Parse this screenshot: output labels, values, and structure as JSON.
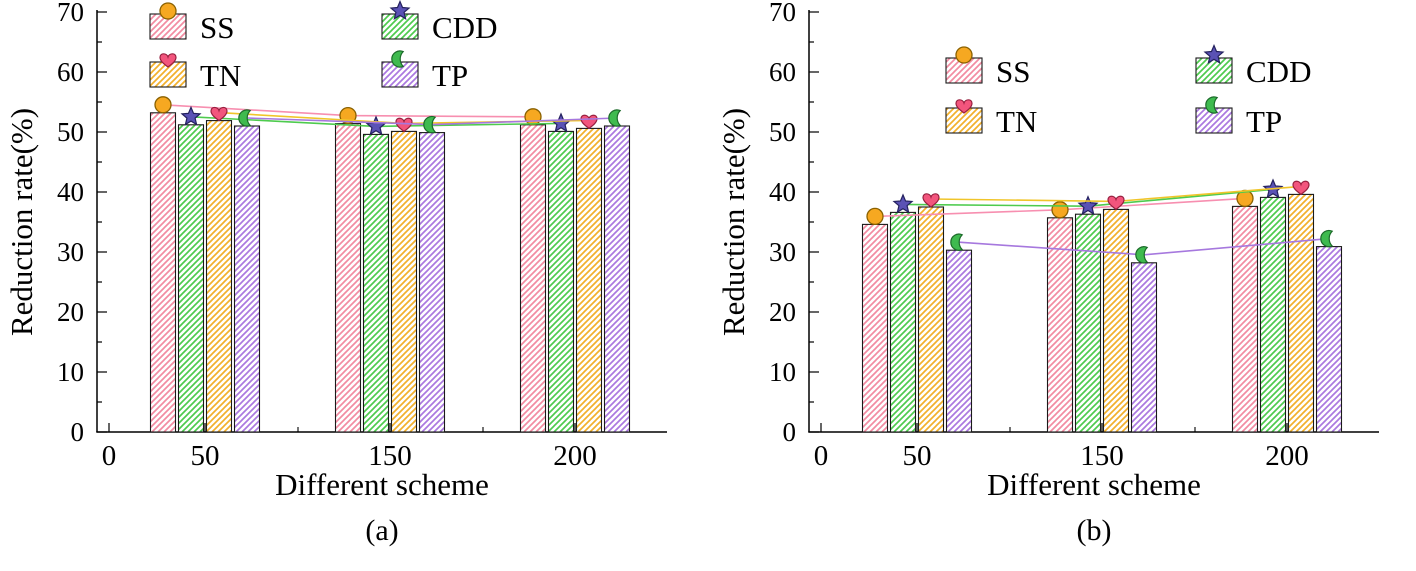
{
  "figure": {
    "captions": [
      "(a)",
      "(b)"
    ],
    "background": "#ffffff"
  },
  "chart_data": [
    {
      "type": "bar",
      "title": "",
      "xlabel": "Different scheme",
      "ylabel": "Reduction rate(%)",
      "ylim": [
        0,
        70
      ],
      "yticks": [
        0,
        10,
        20,
        30,
        40,
        50,
        60,
        70
      ],
      "xticks": [
        "0",
        "50",
        "150",
        "200"
      ],
      "categories": [
        "50",
        "150",
        "200"
      ],
      "grid": false,
      "legend_position": "upper-left-two-columns",
      "legend_columns": [
        [
          "SS",
          "TN"
        ],
        [
          "CDD",
          "TP"
        ]
      ],
      "series": [
        {
          "name": "SS",
          "marker": "circle-marker",
          "values": [
            53.2,
            51.4,
            51.2
          ],
          "bar_color": "#f28ca2",
          "line_color": "#f78fb0",
          "marker_fill": "#f6a821",
          "marker_stroke": "#8a6100"
        },
        {
          "name": "CDD",
          "marker": "star-marker",
          "values": [
            51.2,
            49.6,
            50.1
          ],
          "bar_color": "#4ecb4e",
          "line_color": "#4ecb4e",
          "marker_fill": "#5a52b5",
          "marker_stroke": "#24215e"
        },
        {
          "name": "TN",
          "marker": "heart-marker",
          "values": [
            51.9,
            50.1,
            50.6
          ],
          "bar_color": "#f2b02c",
          "line_color": "#f0c52a",
          "marker_fill": "#f2557d",
          "marker_stroke": "#97203f"
        },
        {
          "name": "TP",
          "marker": "moon-marker",
          "values": [
            51.0,
            49.9,
            51.0
          ],
          "bar_color": "#ab79e0",
          "line_color": "#a678de",
          "marker_fill": "#3fba4f",
          "marker_stroke": "#1c6b2a"
        }
      ]
    },
    {
      "type": "bar",
      "title": "",
      "xlabel": "Different scheme",
      "ylabel": "Reduction rate(%)",
      "ylim": [
        0,
        70
      ],
      "yticks": [
        0,
        10,
        20,
        30,
        40,
        50,
        60,
        70
      ],
      "xticks": [
        "0",
        "50",
        "150",
        "200"
      ],
      "categories": [
        "50",
        "150",
        "200"
      ],
      "grid": false,
      "legend_position": "upper-center-two-columns",
      "legend_columns": [
        [
          "SS",
          "TN"
        ],
        [
          "CDD",
          "TP"
        ]
      ],
      "series": [
        {
          "name": "SS",
          "marker": "circle-marker",
          "values": [
            34.6,
            35.7,
            37.6
          ],
          "bar_color": "#f28ca2",
          "line_color": "#f78fb0",
          "marker_fill": "#f6a821",
          "marker_stroke": "#8a6100"
        },
        {
          "name": "CDD",
          "marker": "star-marker",
          "values": [
            36.6,
            36.3,
            39.1
          ],
          "bar_color": "#4ecb4e",
          "line_color": "#4ecb4e",
          "marker_fill": "#5a52b5",
          "marker_stroke": "#24215e"
        },
        {
          "name": "TN",
          "marker": "heart-marker",
          "values": [
            37.5,
            37.1,
            39.6
          ],
          "bar_color": "#f2b02c",
          "line_color": "#f0c52a",
          "marker_fill": "#f2557d",
          "marker_stroke": "#97203f"
        },
        {
          "name": "TP",
          "marker": "moon-marker",
          "values": [
            30.3,
            28.2,
            30.9
          ],
          "bar_color": "#ab79e0",
          "line_color": "#a678de",
          "marker_fill": "#3fba4f",
          "marker_stroke": "#1c6b2a"
        }
      ]
    }
  ]
}
